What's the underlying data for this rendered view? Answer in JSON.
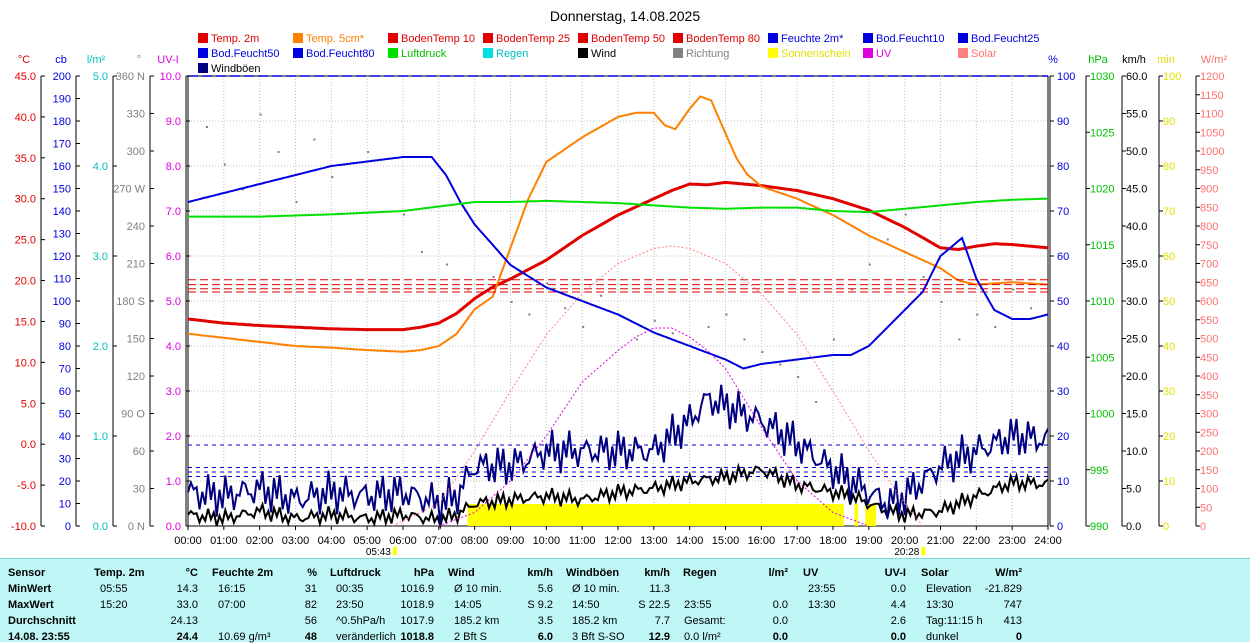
{
  "title": "Donnerstag, 14.08.2025",
  "legend": [
    {
      "label": "Temp. 2m",
      "color": "#e00000",
      "text": "#e00000"
    },
    {
      "label": "Temp. 5cm*",
      "color": "#ff7f00",
      "text": "#ff7f00"
    },
    {
      "label": "BodenTemp 10",
      "color": "#e00000",
      "text": "#e00000"
    },
    {
      "label": "BodenTemp 25",
      "color": "#e00000",
      "text": "#e00000"
    },
    {
      "label": "BodenTemp 50",
      "color": "#e00000",
      "text": "#e00000"
    },
    {
      "label": "BodenTemp 80",
      "color": "#e00000",
      "text": "#e00000"
    },
    {
      "label": "Feuchte 2m*",
      "color": "#0000e0",
      "text": "#0000e0"
    },
    {
      "label": "Bod.Feucht10",
      "color": "#0000e0",
      "text": "#0000e0"
    },
    {
      "label": "Bod.Feucht25",
      "color": "#0000e0",
      "text": "#0000e0"
    },
    {
      "label": "Bod.Feucht50",
      "color": "#0000e0",
      "text": "#0000e0"
    },
    {
      "label": "Bod.Feucht80",
      "color": "#0000e0",
      "text": "#0000e0"
    },
    {
      "label": "Luftdruck",
      "color": "#00e000",
      "text": "#00c000"
    },
    {
      "label": "Regen",
      "color": "#00e0e0",
      "text": "#00c0c0"
    },
    {
      "label": "Wind",
      "color": "#000000",
      "text": "#000000"
    },
    {
      "label": "Richtung",
      "color": "#808080",
      "text": "#808080"
    },
    {
      "label": "Sonnenschein",
      "color": "#ffff00",
      "text": "#e0e000"
    },
    {
      "label": "UV",
      "color": "#e000e0",
      "text": "#e000e0"
    },
    {
      "label": "Solar",
      "color": "#ff8080",
      "text": "#ff7070"
    },
    {
      "label": "Windböen",
      "color": "#000080",
      "text": "#000000"
    }
  ],
  "axes": {
    "temp": {
      "unit": "°C",
      "ticks": [
        "45.0",
        "40.0",
        "35.0",
        "30.0",
        "25.0",
        "20.0",
        "15.0",
        "10.0",
        "5.0",
        "0.0",
        "-5.0",
        "-10.0"
      ],
      "color": "#e00000"
    },
    "cb": {
      "unit": "cb",
      "ticks": [
        "200",
        "190",
        "180",
        "170",
        "160",
        "150",
        "140",
        "130",
        "120",
        "110",
        "100",
        "90",
        "80",
        "70",
        "60",
        "50",
        "40",
        "30",
        "20",
        "10",
        "0"
      ],
      "color": "#0000e0"
    },
    "rain": {
      "unit": "l/m²",
      "ticks": [
        "5.0",
        "4.0",
        "3.0",
        "2.0",
        "1.0",
        "0.0"
      ],
      "color": "#00c0c0"
    },
    "dir": {
      "unit": "°",
      "ticks": [
        "360 N",
        "330",
        "300",
        "270 W",
        "240",
        "210",
        "180 S",
        "150",
        "120",
        "90 O",
        "60",
        "30",
        "0 N"
      ],
      "color": "#808080"
    },
    "uv": {
      "unit": "UV-I",
      "ticks": [
        "10.0",
        "9.0",
        "8.0",
        "7.0",
        "6.0",
        "5.0",
        "4.0",
        "3.0",
        "2.0",
        "1.0",
        "0.0"
      ],
      "color": "#e000e0"
    },
    "hum": {
      "unit": "%",
      "ticks": [
        "100",
        "90",
        "80",
        "70",
        "60",
        "50",
        "40",
        "30",
        "20",
        "10",
        "0"
      ],
      "color": "#0000e0"
    },
    "press": {
      "unit": "hPa",
      "ticks": [
        "1030",
        "1025",
        "1020",
        "1015",
        "1010",
        "1005",
        "1000",
        "995",
        "990"
      ],
      "color": "#00c000"
    },
    "wind": {
      "unit": "km/h",
      "ticks": [
        "60.0",
        "55.0",
        "50.0",
        "45.0",
        "40.0",
        "35.0",
        "30.0",
        "25.0",
        "20.0",
        "15.0",
        "10.0",
        "5.0",
        "0.0"
      ],
      "color": "#000000"
    },
    "min": {
      "unit": "min",
      "ticks": [
        "100",
        "90",
        "80",
        "70",
        "60",
        "50",
        "40",
        "30",
        "20",
        "10",
        "0"
      ],
      "color": "#e0e000"
    },
    "solar": {
      "unit": "W/m²",
      "ticks": [
        "1200",
        "1150",
        "1100",
        "1050",
        "1000",
        "950",
        "900",
        "850",
        "800",
        "750",
        "700",
        "650",
        "600",
        "550",
        "500",
        "450",
        "400",
        "350",
        "300",
        "250",
        "200",
        "150",
        "100",
        "50",
        "0"
      ],
      "color": "#ff7070"
    }
  },
  "x_ticks": [
    "00:00",
    "01:00",
    "02:00",
    "03:00",
    "04:00",
    "05:00",
    "06:00",
    "07:00",
    "08:00",
    "09:00",
    "10:00",
    "11:00",
    "12:00",
    "13:00",
    "14:00",
    "15:00",
    "16:00",
    "17:00",
    "18:00",
    "19:00",
    "20:00",
    "21:00",
    "22:00",
    "23:00",
    "24:00"
  ],
  "sunrise": "05:43",
  "sunset": "20:28",
  "chart_data": {
    "type": "line",
    "title": "Donnerstag, 14.08.2025",
    "x_range": [
      0,
      24
    ],
    "series": [
      {
        "name": "Temp. 2m",
        "axis": "temp",
        "color": "#e00000",
        "x": [
          0,
          1,
          2,
          3,
          4,
          5,
          6,
          6.5,
          7,
          7.5,
          8,
          8.5,
          9,
          10,
          11,
          12,
          13,
          13.5,
          14,
          14.5,
          15,
          16,
          17,
          18,
          19,
          20,
          21,
          21.5,
          22,
          22.5,
          23,
          23.5,
          24
        ],
        "values": [
          15.3,
          14.8,
          14.5,
          14.3,
          14.1,
          14.0,
          14.0,
          14.3,
          14.8,
          16.0,
          17.8,
          19.2,
          20.2,
          22.5,
          25.5,
          28.0,
          30.0,
          31.0,
          31.8,
          31.7,
          32.0,
          31.6,
          31.0,
          30.0,
          28.6,
          26.5,
          24.0,
          23.8,
          24.2,
          24.5,
          24.4,
          24.2,
          24.0
        ]
      },
      {
        "name": "Temp. 5cm*",
        "axis": "temp",
        "color": "#ff7f00",
        "x": [
          0,
          1,
          2,
          3,
          4,
          5,
          6,
          6.5,
          7,
          7.5,
          8,
          8.5,
          9,
          9.5,
          10,
          11,
          12,
          12.5,
          13,
          13.3,
          13.6,
          14,
          14.3,
          14.6,
          15,
          15.3,
          15.6,
          16,
          17,
          18,
          19,
          20,
          21,
          21.5,
          22,
          23,
          24
        ],
        "values": [
          13.5,
          13.0,
          12.5,
          12.0,
          11.8,
          11.5,
          11.3,
          11.5,
          12.0,
          13.5,
          16.5,
          18.0,
          24.0,
          30.0,
          34.5,
          37.5,
          40.0,
          40.5,
          40.5,
          39.0,
          38.5,
          41.0,
          42.5,
          42.0,
          38.0,
          35.0,
          33.0,
          31.5,
          30.0,
          28.0,
          25.5,
          23.5,
          21.5,
          20.0,
          19.5,
          19.8,
          19.5
        ]
      },
      {
        "name": "BodenTemp 10",
        "axis": "temp",
        "color": "#e00000",
        "dash": "8,4",
        "x": [
          0,
          24
        ],
        "values": [
          20.1,
          20.1
        ]
      },
      {
        "name": "BodenTemp 25",
        "axis": "temp",
        "color": "#e00000",
        "dash": "8,4",
        "x": [
          0,
          24
        ],
        "values": [
          19.5,
          19.5
        ]
      },
      {
        "name": "BodenTemp 50",
        "axis": "temp",
        "color": "#e00000",
        "dash": "8,4",
        "x": [
          0,
          24
        ],
        "values": [
          19.0,
          19.0
        ]
      },
      {
        "name": "BodenTemp 80",
        "axis": "temp",
        "color": "#e00000",
        "dash": "8,4",
        "x": [
          0,
          24
        ],
        "values": [
          18.6,
          18.6
        ]
      },
      {
        "name": "Feuchte 2m*",
        "axis": "hum",
        "color": "#0000e0",
        "x": [
          0,
          1,
          2,
          3,
          4,
          5,
          6,
          6.8,
          7.2,
          7.6,
          8,
          9,
          10,
          11,
          12,
          13,
          14,
          15,
          15.5,
          16,
          17,
          18,
          18.5,
          19,
          19.5,
          20,
          20.5,
          21,
          21.3,
          21.6,
          22,
          22.5,
          23,
          23.5,
          24
        ],
        "values": [
          72,
          74,
          76,
          78,
          80,
          81,
          82,
          82,
          78,
          72,
          67,
          58,
          53,
          50,
          47,
          43,
          40,
          37,
          35,
          36,
          37,
          38,
          38,
          40,
          44,
          48,
          52,
          60,
          62,
          64,
          55,
          48,
          46,
          46,
          47
        ]
      },
      {
        "name": "Bod.Feucht10",
        "axis": "hum",
        "color": "#0000e0",
        "dash": "4,4",
        "x": [
          0,
          24
        ],
        "values": [
          18,
          18
        ]
      },
      {
        "name": "Bod.Feucht25",
        "axis": "hum",
        "color": "#0000e0",
        "dash": "4,4",
        "x": [
          0,
          24
        ],
        "values": [
          13,
          13
        ]
      },
      {
        "name": "Bod.Feucht50",
        "axis": "hum",
        "color": "#0000e0",
        "dash": "4,4",
        "x": [
          0,
          24
        ],
        "values": [
          12,
          12
        ]
      },
      {
        "name": "Bod.Feucht80",
        "axis": "hum",
        "color": "#0000e0",
        "dash": "4,4",
        "x": [
          0,
          24
        ],
        "values": [
          11,
          11
        ]
      },
      {
        "name": "Luftdruck",
        "axis": "press",
        "color": "#00e000",
        "x": [
          0,
          2,
          4,
          6,
          8,
          9,
          10,
          11,
          12,
          13,
          14,
          15,
          16,
          17,
          18,
          19,
          20,
          21,
          22,
          23,
          24
        ],
        "values": [
          1017.5,
          1017.5,
          1017.7,
          1018.0,
          1018.8,
          1018.8,
          1018.9,
          1018.8,
          1018.7,
          1018.5,
          1018.3,
          1018.2,
          1018.3,
          1018.3,
          1018.0,
          1017.9,
          1018.2,
          1018.5,
          1018.8,
          1019.0,
          1019.1
        ]
      },
      {
        "name": "Wind",
        "axis": "wind",
        "color": "#000000",
        "x": [
          0,
          1,
          2,
          3,
          4,
          5,
          6,
          7,
          7.5,
          8,
          9,
          10,
          11,
          12,
          13,
          14,
          15,
          16,
          17,
          18,
          18.5,
          19,
          19.5,
          20,
          21,
          22,
          23,
          24
        ],
        "values": [
          1.5,
          1.0,
          2.0,
          1.0,
          1.5,
          1.0,
          1.5,
          0.8,
          1.5,
          3.0,
          3.5,
          4.0,
          3.5,
          4.5,
          5.0,
          6.0,
          6.5,
          7.5,
          5.5,
          4.5,
          4.0,
          3.0,
          2.0,
          1.5,
          2.0,
          4.0,
          5.8,
          5.6
        ]
      },
      {
        "name": "Windböen",
        "axis": "wind",
        "color": "#000080",
        "x": [
          0,
          1,
          2,
          3,
          4,
          5,
          6,
          7,
          7.5,
          8,
          9,
          10,
          11,
          12,
          13,
          14,
          14.5,
          15,
          16,
          17,
          18,
          18.5,
          19,
          19.5,
          20,
          21,
          22,
          23,
          24
        ],
        "values": [
          4.5,
          4.0,
          5.0,
          3.5,
          4.5,
          4.0,
          4.5,
          3.0,
          4.0,
          8.0,
          8.0,
          10.0,
          10.0,
          10.0,
          10.0,
          14.0,
          17.0,
          16.0,
          14.0,
          11.0,
          7.5,
          6.0,
          4.5,
          3.0,
          4.0,
          8.0,
          10.0,
          12.0,
          11.5
        ]
      },
      {
        "name": "UV",
        "axis": "uv",
        "color": "#e000e0",
        "dash": "2,2",
        "x": [
          7,
          8,
          9,
          10,
          11,
          12,
          12.5,
          13,
          13.5,
          14,
          14.5,
          15,
          16,
          17,
          18,
          19
        ],
        "values": [
          0.0,
          0.3,
          1.0,
          2.0,
          3.2,
          3.9,
          4.2,
          4.4,
          4.4,
          4.2,
          3.9,
          3.5,
          2.2,
          1.0,
          0.3,
          0.0
        ]
      },
      {
        "name": "Solar",
        "axis": "solar",
        "color": "#ff8080",
        "dash": "2,2",
        "x": [
          5.7,
          7,
          8,
          9,
          10,
          11,
          12,
          13,
          13.5,
          14,
          15,
          16,
          17,
          18,
          19,
          20,
          20.5
        ],
        "values": [
          0,
          60,
          200,
          360,
          510,
          620,
          700,
          740,
          747,
          740,
          700,
          620,
          510,
          360,
          200,
          60,
          0
        ]
      }
    ],
    "sunshine": [
      [
        7.8,
        18.3
      ],
      [
        18.6,
        18.7
      ],
      [
        18.9,
        19.2
      ]
    ],
    "direction_points": [
      [
        0.5,
        320
      ],
      [
        1.0,
        290
      ],
      [
        1.5,
        270
      ],
      [
        2.0,
        330
      ],
      [
        2.5,
        300
      ],
      [
        3.0,
        260
      ],
      [
        3.5,
        310
      ],
      [
        4.0,
        280
      ],
      [
        5.0,
        300
      ],
      [
        6.0,
        250
      ],
      [
        6.5,
        220
      ],
      [
        7.2,
        210
      ],
      [
        7.8,
        190
      ],
      [
        8.5,
        200
      ],
      [
        9.0,
        180
      ],
      [
        9.5,
        170
      ],
      [
        10.0,
        195
      ],
      [
        10.5,
        175
      ],
      [
        11.0,
        160
      ],
      [
        11.5,
        185
      ],
      [
        12.0,
        170
      ],
      [
        12.5,
        150
      ],
      [
        13.0,
        165
      ],
      [
        13.5,
        155
      ],
      [
        14.0,
        145
      ],
      [
        14.5,
        160
      ],
      [
        15.0,
        170
      ],
      [
        15.5,
        150
      ],
      [
        16.0,
        140
      ],
      [
        16.5,
        130
      ],
      [
        17.0,
        120
      ],
      [
        17.5,
        100
      ],
      [
        18.0,
        150
      ],
      [
        18.5,
        190
      ],
      [
        19.0,
        210
      ],
      [
        19.5,
        230
      ],
      [
        20.0,
        250
      ],
      [
        20.5,
        200
      ],
      [
        21.0,
        180
      ],
      [
        21.5,
        150
      ],
      [
        22.0,
        170
      ],
      [
        22.5,
        160
      ],
      [
        23.0,
        190
      ],
      [
        23.5,
        175
      ]
    ]
  },
  "stats": {
    "headers": [
      "Sensor",
      "Temp. 2m",
      "°C",
      "Feuchte 2m",
      "%",
      "Luftdruck",
      "hPa",
      "Wind",
      "km/h",
      "Windböen",
      "km/h",
      "Regen",
      "l/m²",
      "UV",
      "UV-I",
      "Solar",
      "W/m²"
    ],
    "row_labels": [
      "MinWert",
      "MaxWert",
      "Durchschnitt",
      "14.08. 23:55"
    ],
    "temp": [
      [
        "05:55",
        "14.3"
      ],
      [
        "15:20",
        "33.0"
      ],
      [
        "",
        "24.13"
      ],
      [
        "",
        "24.4"
      ]
    ],
    "hum": [
      [
        "16:15",
        "31"
      ],
      [
        "07:00",
        "82"
      ],
      [
        "",
        "56"
      ],
      [
        "10.69 g/m³",
        "48"
      ]
    ],
    "press": [
      [
        "00:35",
        "1016.9"
      ],
      [
        "23:50",
        "1018.9"
      ],
      [
        "^0.5hPa/h",
        "1017.9"
      ],
      [
        "veränderlich",
        "1018.8"
      ]
    ],
    "wind": [
      [
        "Ø 10 min.",
        "5.6"
      ],
      [
        "14:05",
        "S 9.2"
      ],
      [
        "185.2 km",
        "3.5"
      ],
      [
        "2 Bft S",
        "6.0"
      ]
    ],
    "gust": [
      [
        "Ø 10 min.",
        "11.3"
      ],
      [
        "14:50",
        "S 22.5"
      ],
      [
        "185.2 km",
        "7.7"
      ],
      [
        "3 Bft S-SO",
        "12.9"
      ]
    ],
    "rain": [
      [
        "",
        ""
      ],
      [
        "23:55",
        "0.0"
      ],
      [
        "Gesamt:",
        "0.0"
      ],
      [
        "0.0 l/m²",
        "0.0"
      ]
    ],
    "uv": [
      [
        "23:55",
        "0.0"
      ],
      [
        "13:30",
        "4.4"
      ],
      [
        "",
        "2.6"
      ],
      [
        "",
        "0.0"
      ]
    ],
    "solar": [
      [
        "Elevation",
        "-21.829"
      ],
      [
        "13:30",
        "747"
      ],
      [
        "Tag:11:15 h",
        "413"
      ],
      [
        "dunkel",
        "0"
      ]
    ]
  }
}
